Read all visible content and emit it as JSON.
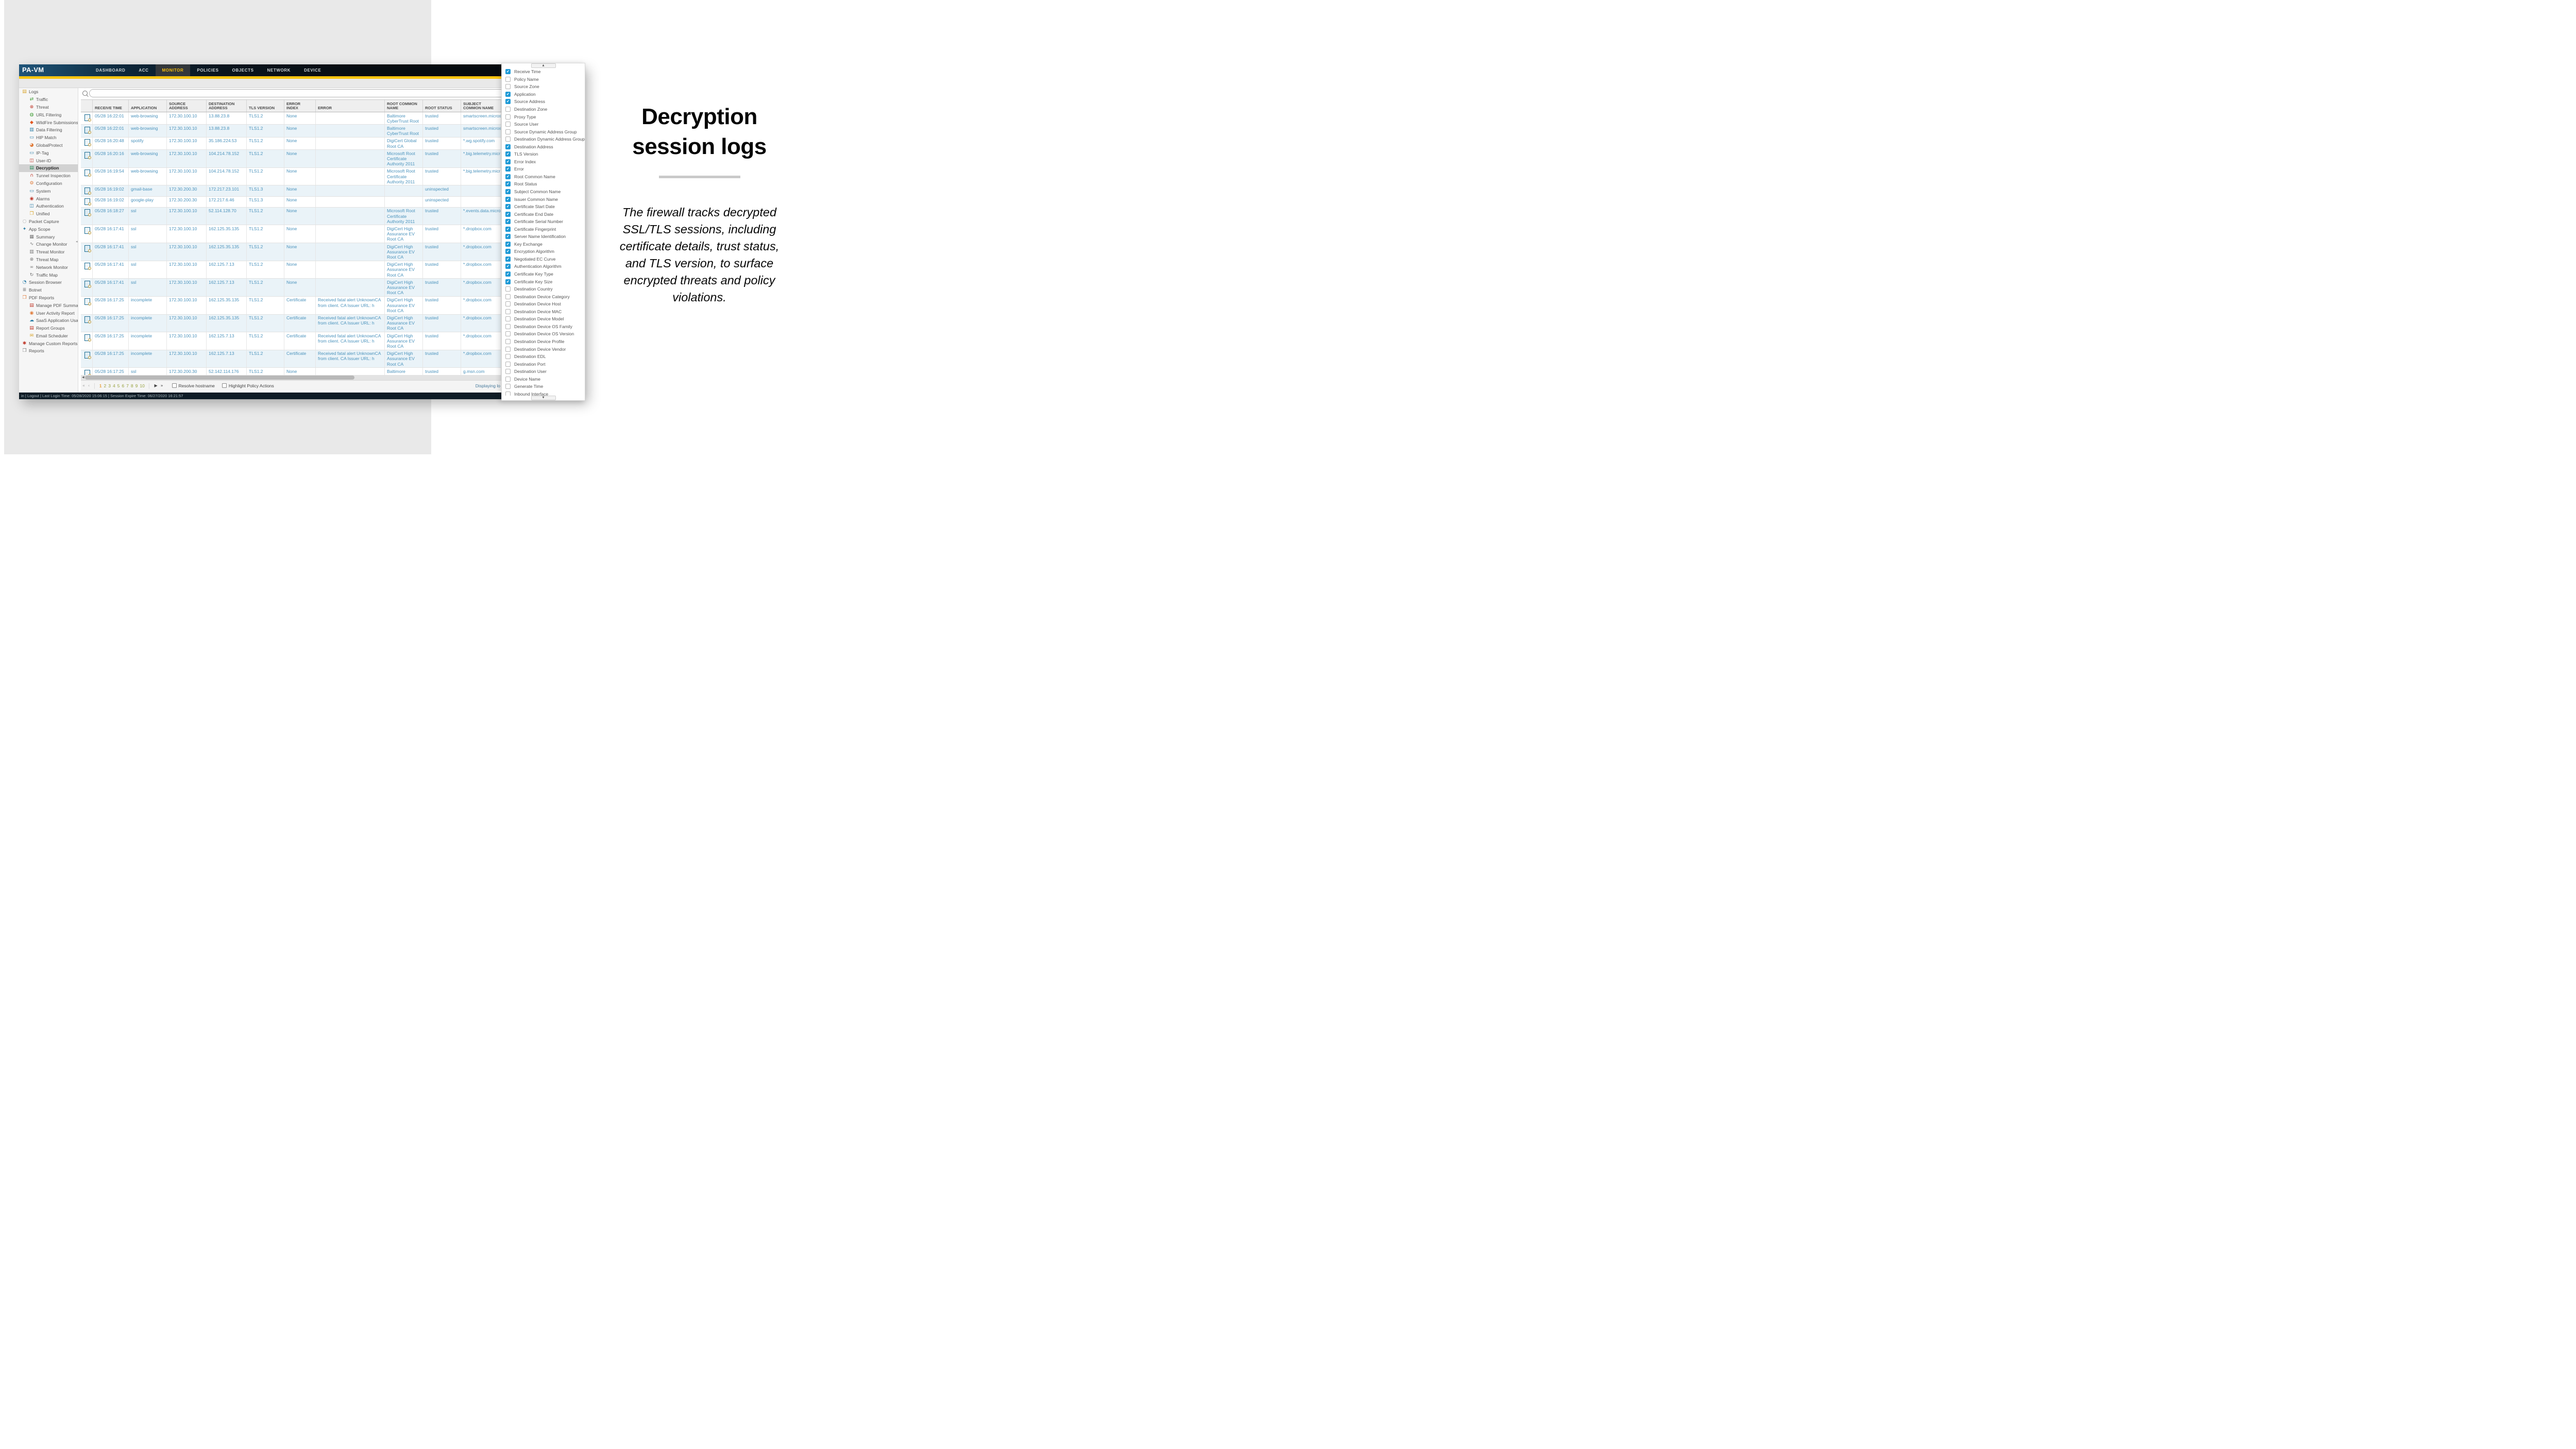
{
  "colors": {
    "accent_yellow": "#fbc510",
    "nav_active_text": "#f7bd0e",
    "link_blue": "#4b93bd",
    "checkbox_checked": "#1f9ad6",
    "page_current": "#e8a33d",
    "page_other": "#97a13e"
  },
  "window": {
    "logo": "PA-VM",
    "nav_tabs": [
      {
        "label": "DASHBOARD",
        "active": false
      },
      {
        "label": "ACC",
        "active": false
      },
      {
        "label": "MONITOR",
        "active": true
      },
      {
        "label": "POLICIES",
        "active": false
      },
      {
        "label": "OBJECTS",
        "active": false
      },
      {
        "label": "NETWORK",
        "active": false
      },
      {
        "label": "DEVICE",
        "active": false
      }
    ]
  },
  "sidebar": {
    "items": [
      {
        "label": "Logs",
        "level": 0,
        "icon": "logs-icon",
        "selected": false
      },
      {
        "label": "Traffic",
        "level": 1,
        "icon": "traffic-icon",
        "selected": false
      },
      {
        "label": "Threat",
        "level": 1,
        "icon": "threat-icon",
        "selected": false
      },
      {
        "label": "URL Filtering",
        "level": 1,
        "icon": "url-filtering-icon",
        "selected": false
      },
      {
        "label": "WildFire Submissions",
        "level": 1,
        "icon": "wildfire-icon",
        "selected": false
      },
      {
        "label": "Data Filtering",
        "level": 1,
        "icon": "data-filtering-icon",
        "selected": false
      },
      {
        "label": "HIP Match",
        "level": 1,
        "icon": "hip-match-icon",
        "selected": false
      },
      {
        "label": "GlobalProtect",
        "level": 1,
        "icon": "globalprotect-icon",
        "selected": false
      },
      {
        "label": "IP-Tag",
        "level": 1,
        "icon": "ip-tag-icon",
        "selected": false
      },
      {
        "label": "User-ID",
        "level": 1,
        "icon": "user-id-icon",
        "selected": false
      },
      {
        "label": "Decryption",
        "level": 1,
        "icon": "decryption-icon",
        "selected": true
      },
      {
        "label": "Tunnel Inspection",
        "level": 1,
        "icon": "tunnel-inspection-icon",
        "selected": false
      },
      {
        "label": "Configuration",
        "level": 1,
        "icon": "configuration-icon",
        "selected": false
      },
      {
        "label": "System",
        "level": 1,
        "icon": "system-icon",
        "selected": false
      },
      {
        "label": "Alarms",
        "level": 1,
        "icon": "alarms-icon",
        "selected": false
      },
      {
        "label": "Authentication",
        "level": 1,
        "icon": "authentication-icon",
        "selected": false
      },
      {
        "label": "Unified",
        "level": 1,
        "icon": "unified-icon",
        "selected": false
      },
      {
        "label": "Packet Capture",
        "level": 0,
        "icon": "packet-capture-icon",
        "selected": false
      },
      {
        "label": "App Scope",
        "level": 0,
        "icon": "app-scope-icon",
        "selected": false
      },
      {
        "label": "Summary",
        "level": 1,
        "icon": "summary-icon",
        "selected": false
      },
      {
        "label": "Change Monitor",
        "level": 1,
        "icon": "change-monitor-icon",
        "selected": false
      },
      {
        "label": "Threat Monitor",
        "level": 1,
        "icon": "threat-monitor-icon",
        "selected": false
      },
      {
        "label": "Threat Map",
        "level": 1,
        "icon": "threat-map-icon",
        "selected": false
      },
      {
        "label": "Network Monitor",
        "level": 1,
        "icon": "network-monitor-icon",
        "selected": false
      },
      {
        "label": "Traffic Map",
        "level": 1,
        "icon": "traffic-map-icon",
        "selected": false
      },
      {
        "label": "Session Browser",
        "level": 0,
        "icon": "session-browser-icon",
        "selected": false
      },
      {
        "label": "Botnet",
        "level": 0,
        "icon": "botnet-icon",
        "selected": false
      },
      {
        "label": "PDF Reports",
        "level": 0,
        "icon": "pdf-reports-icon",
        "selected": false
      },
      {
        "label": "Manage PDF Summary",
        "level": 1,
        "icon": "manage-pdf-summary-icon",
        "selected": false
      },
      {
        "label": "User Activity Report",
        "level": 1,
        "icon": "user-activity-report-icon",
        "selected": false
      },
      {
        "label": "SaaS Application Usage",
        "level": 1,
        "icon": "saas-usage-icon",
        "selected": false
      },
      {
        "label": "Report Groups",
        "level": 1,
        "icon": "report-groups-icon",
        "selected": false
      },
      {
        "label": "Email Scheduler",
        "level": 1,
        "icon": "email-scheduler-icon",
        "selected": false
      },
      {
        "label": "Manage Custom Reports",
        "level": 0,
        "icon": "manage-custom-reports-icon",
        "selected": false
      },
      {
        "label": "Reports",
        "level": 0,
        "icon": "reports-icon",
        "selected": false
      }
    ]
  },
  "search": {
    "value": "",
    "placeholder": ""
  },
  "table": {
    "columns": [
      {
        "label": ""
      },
      {
        "label": "RECEIVE TIME"
      },
      {
        "label": "APPLICATION"
      },
      {
        "label": "SOURCE ADDRESS"
      },
      {
        "label": "DESTINATION ADDRESS"
      },
      {
        "label": "TLS VERSION"
      },
      {
        "label": "ERROR INDEX"
      },
      {
        "label": "ERROR"
      },
      {
        "label": "ROOT COMMON NAME"
      },
      {
        "label": "ROOT STATUS"
      },
      {
        "label": "SUBJECT COMMON NAME"
      }
    ],
    "rows": [
      {
        "receive_time": "05/28 16:22:01",
        "application": "web-browsing",
        "source_address": "172.30.100.10",
        "destination_address": "13.88.23.8",
        "tls_version": "TLS1.2",
        "error_index": "None",
        "error": "",
        "root_common_name": "Baltimore CyberTrust Root",
        "root_status": "trusted",
        "subject_common_name": "smartscreen.microso"
      },
      {
        "receive_time": "05/28 16:22:01",
        "application": "web-browsing",
        "source_address": "172.30.100.10",
        "destination_address": "13.88.23.8",
        "tls_version": "TLS1.2",
        "error_index": "None",
        "error": "",
        "root_common_name": "Baltimore CyberTrust Root",
        "root_status": "trusted",
        "subject_common_name": "smartscreen.microso"
      },
      {
        "receive_time": "05/28 16:20:48",
        "application": "spotify",
        "source_address": "172.30.100.10",
        "destination_address": "35.186.224.53",
        "tls_version": "TLS1.2",
        "error_index": "None",
        "error": "",
        "root_common_name": "DigiCert Global Root CA",
        "root_status": "trusted",
        "subject_common_name": "*.wg.spotify.com"
      },
      {
        "receive_time": "05/28 16:20:16",
        "application": "web-browsing",
        "source_address": "172.30.100.10",
        "destination_address": "104.214.78.152",
        "tls_version": "TLS1.2",
        "error_index": "None",
        "error": "",
        "root_common_name": "Microsoft Root Certificate Authority 2011",
        "root_status": "trusted",
        "subject_common_name": "*.big.telemetry.micr"
      },
      {
        "receive_time": "05/28 16:19:54",
        "application": "web-browsing",
        "source_address": "172.30.100.10",
        "destination_address": "104.214.78.152",
        "tls_version": "TLS1.2",
        "error_index": "None",
        "error": "",
        "root_common_name": "Microsoft Root Certificate Authority 2011",
        "root_status": "trusted",
        "subject_common_name": "*.big.telemetry.micr"
      },
      {
        "receive_time": "05/28 16:19:02",
        "application": "gmail-base",
        "source_address": "172.30.200.30",
        "destination_address": "172.217.23.101",
        "tls_version": "TLS1.3",
        "error_index": "None",
        "error": "",
        "root_common_name": "",
        "root_status": "uninspected",
        "subject_common_name": ""
      },
      {
        "receive_time": "05/28 16:19:02",
        "application": "google-play",
        "source_address": "172.30.200.30",
        "destination_address": "172.217.6.46",
        "tls_version": "TLS1.3",
        "error_index": "None",
        "error": "",
        "root_common_name": "",
        "root_status": "uninspected",
        "subject_common_name": ""
      },
      {
        "receive_time": "05/28 16:18:27",
        "application": "ssl",
        "source_address": "172.30.100.10",
        "destination_address": "52.114.128.70",
        "tls_version": "TLS1.2",
        "error_index": "None",
        "error": "",
        "root_common_name": "Microsoft Root Certificate Authority 2011",
        "root_status": "trusted",
        "subject_common_name": "*.events.data.micros"
      },
      {
        "receive_time": "05/28 16:17:41",
        "application": "ssl",
        "source_address": "172.30.100.10",
        "destination_address": "162.125.35.135",
        "tls_version": "TLS1.2",
        "error_index": "None",
        "error": "",
        "root_common_name": "DigiCert High Assurance EV Root CA",
        "root_status": "trusted",
        "subject_common_name": "*.dropbox.com"
      },
      {
        "receive_time": "05/28 16:17:41",
        "application": "ssl",
        "source_address": "172.30.100.10",
        "destination_address": "162.125.35.135",
        "tls_version": "TLS1.2",
        "error_index": "None",
        "error": "",
        "root_common_name": "DigiCert High Assurance EV Root CA",
        "root_status": "trusted",
        "subject_common_name": "*.dropbox.com"
      },
      {
        "receive_time": "05/28 16:17:41",
        "application": "ssl",
        "source_address": "172.30.100.10",
        "destination_address": "162.125.7.13",
        "tls_version": "TLS1.2",
        "error_index": "None",
        "error": "",
        "root_common_name": "DigiCert High Assurance EV Root CA",
        "root_status": "trusted",
        "subject_common_name": "*.dropbox.com"
      },
      {
        "receive_time": "05/28 16:17:41",
        "application": "ssl",
        "source_address": "172.30.100.10",
        "destination_address": "162.125.7.13",
        "tls_version": "TLS1.2",
        "error_index": "None",
        "error": "",
        "root_common_name": "DigiCert High Assurance EV Root CA",
        "root_status": "trusted",
        "subject_common_name": "*.dropbox.com"
      },
      {
        "receive_time": "05/28 16:17:25",
        "application": "incomplete",
        "source_address": "172.30.100.10",
        "destination_address": "162.125.35.135",
        "tls_version": "TLS1.2",
        "error_index": "Certificate",
        "error": "Received fatal alert UnknownCA from client. CA Issuer URL: h",
        "root_common_name": "DigiCert High Assurance EV Root CA",
        "root_status": "trusted",
        "subject_common_name": "*.dropbox.com"
      },
      {
        "receive_time": "05/28 16:17:25",
        "application": "incomplete",
        "source_address": "172.30.100.10",
        "destination_address": "162.125.35.135",
        "tls_version": "TLS1.2",
        "error_index": "Certificate",
        "error": "Received fatal alert UnknownCA from client. CA Issuer URL: h",
        "root_common_name": "DigiCert High Assurance EV Root CA",
        "root_status": "trusted",
        "subject_common_name": "*.dropbox.com"
      },
      {
        "receive_time": "05/28 16:17:25",
        "application": "incomplete",
        "source_address": "172.30.100.10",
        "destination_address": "162.125.7.13",
        "tls_version": "TLS1.2",
        "error_index": "Certificate",
        "error": "Received fatal alert UnknownCA from client. CA Issuer URL: h",
        "root_common_name": "DigiCert High Assurance EV Root CA",
        "root_status": "trusted",
        "subject_common_name": "*.dropbox.com"
      },
      {
        "receive_time": "05/28 16:17:25",
        "application": "incomplete",
        "source_address": "172.30.100.10",
        "destination_address": "162.125.7.13",
        "tls_version": "TLS1.2",
        "error_index": "Certificate",
        "error": "Received fatal alert UnknownCA from client. CA Issuer URL: h",
        "root_common_name": "DigiCert High Assurance EV Root CA",
        "root_status": "trusted",
        "subject_common_name": "*.dropbox.com"
      },
      {
        "receive_time": "05/28 16:17:25",
        "application": "ssl",
        "source_address": "172.30.200.30",
        "destination_address": "52.142.114.176",
        "tls_version": "TLS1.2",
        "error_index": "None",
        "error": "",
        "root_common_name": "Baltimore CyberTrust Root",
        "root_status": "trusted",
        "subject_common_name": "g.msn.com"
      }
    ]
  },
  "pagination": {
    "pages": [
      "1",
      "2",
      "3",
      "4",
      "5",
      "6",
      "7",
      "8",
      "9",
      "10"
    ],
    "current_page": "1",
    "resolve_hostname_label": "Resolve hostname",
    "highlight_policy_label": "Highlight Policy Actions",
    "displaying_text": "Displaying lo"
  },
  "footer": {
    "text": "in  |  Logout  |  Last Login Time: 05/28/2020 15:06:15  |  Session Expire Time: 06/27/2020 16:21:57"
  },
  "column_chooser": {
    "items": [
      {
        "label": "Receive Time",
        "checked": true
      },
      {
        "label": "Policy Name",
        "checked": false
      },
      {
        "label": "Source Zone",
        "checked": false
      },
      {
        "label": "Application",
        "checked": true
      },
      {
        "label": "Source Address",
        "checked": true
      },
      {
        "label": "Destination Zone",
        "checked": false
      },
      {
        "label": "Proxy Type",
        "checked": false
      },
      {
        "label": "Source User",
        "checked": false
      },
      {
        "label": "Source Dynamic Address Group",
        "checked": false
      },
      {
        "label": "Destination Dynamic Address Group",
        "checked": false
      },
      {
        "label": "Destination Address",
        "checked": true
      },
      {
        "label": "TLS Version",
        "checked": true
      },
      {
        "label": "Error Index",
        "checked": true
      },
      {
        "label": "Error",
        "checked": true
      },
      {
        "label": "Root Common Name",
        "checked": true
      },
      {
        "label": "Root Status",
        "checked": true
      },
      {
        "label": "Subject Common Name",
        "checked": true
      },
      {
        "label": "Issuer Common Name",
        "checked": true
      },
      {
        "label": "Certificate Start Date",
        "checked": true
      },
      {
        "label": "Certificate End Date",
        "checked": true
      },
      {
        "label": "Certificate Serial Number",
        "checked": true
      },
      {
        "label": "Certificate Fingerprint",
        "checked": true
      },
      {
        "label": "Server Name Identification",
        "checked": true
      },
      {
        "label": "Key Exchange",
        "checked": true
      },
      {
        "label": "Encryption Algorithm",
        "checked": true
      },
      {
        "label": "Negotiated EC Curve",
        "checked": true
      },
      {
        "label": "Authentication Algorithm",
        "checked": true
      },
      {
        "label": "Certificate Key Type",
        "checked": true
      },
      {
        "label": "Certificate Key Size",
        "checked": true
      },
      {
        "label": "Destination Country",
        "checked": false
      },
      {
        "label": "Destination Device Category",
        "checked": false
      },
      {
        "label": "Destination Device Host",
        "checked": false
      },
      {
        "label": "Destination Device MAC",
        "checked": false
      },
      {
        "label": "Destination Device Model",
        "checked": false
      },
      {
        "label": "Destination Device OS Family",
        "checked": false
      },
      {
        "label": "Destination Device OS Version",
        "checked": false
      },
      {
        "label": "Destination Device Profile",
        "checked": false
      },
      {
        "label": "Destination Device Vendor",
        "checked": false
      },
      {
        "label": "Destination EDL",
        "checked": false
      },
      {
        "label": "Destination Port",
        "checked": false
      },
      {
        "label": "Destination User",
        "checked": false
      },
      {
        "label": "Device Name",
        "checked": false
      },
      {
        "label": "Generate Time",
        "checked": false
      },
      {
        "label": "Inbound Interface",
        "checked": false
      }
    ]
  },
  "aside": {
    "title_line1": "Decryption",
    "title_line2": "session logs",
    "paragraph": "The firewall tracks decrypted SSL/TLS sessions, including certificate details, trust status, and TLS version, to surface encrypted threats and policy violations."
  }
}
